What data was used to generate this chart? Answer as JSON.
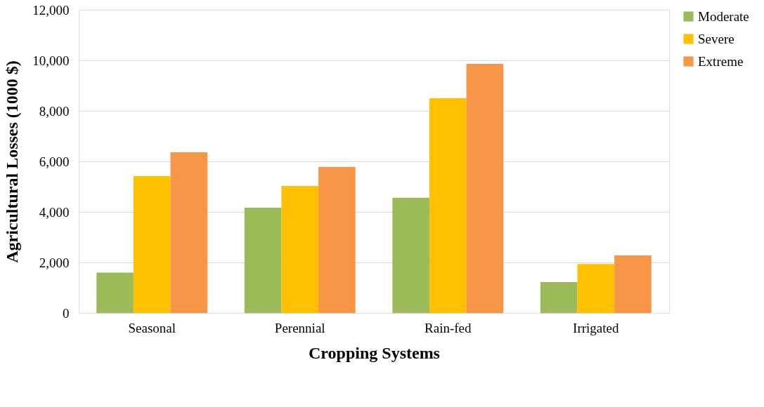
{
  "chart_data": {
    "type": "bar",
    "xlabel": "Cropping Systems",
    "ylabel": "Agricultural Losses (1000 $)",
    "categories": [
      "Seasonal",
      "Perennial",
      "Rain-fed",
      "Irrigated"
    ],
    "series": [
      {
        "name": "Moderate",
        "color": "#9bbb59",
        "values": [
          1600,
          4170,
          4560,
          1220
        ]
      },
      {
        "name": "Severe",
        "color": "#ffc000",
        "values": [
          5420,
          5030,
          8500,
          1940
        ]
      },
      {
        "name": "Extreme",
        "color": "#f79646",
        "values": [
          6360,
          5780,
          9860,
          2280
        ]
      }
    ],
    "ylim": [
      0,
      12000
    ],
    "yticks": [
      {
        "value": 0,
        "label": "0"
      },
      {
        "value": 2000,
        "label": "2,000"
      },
      {
        "value": 4000,
        "label": "4,000"
      },
      {
        "value": 6000,
        "label": "6,000"
      },
      {
        "value": 8000,
        "label": "8,000"
      },
      {
        "value": 10000,
        "label": "10,000"
      },
      {
        "value": 12000,
        "label": "12,000"
      }
    ],
    "grid": "y",
    "legend": "right"
  }
}
